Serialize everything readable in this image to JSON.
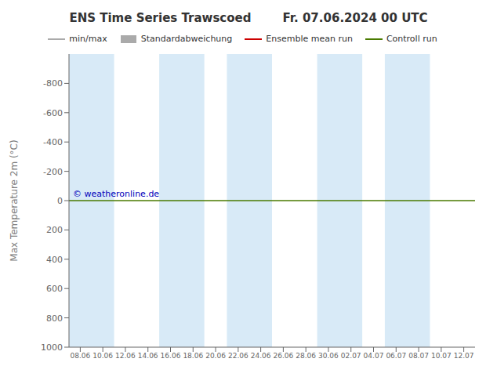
{
  "chart_data": {
    "type": "line",
    "title": "ENS Time Series Trawscoed",
    "subtitle": "Fr. 07.06.2024 00 UTC",
    "y_label": "Max Temperature 2m (°C)",
    "categories": [
      "08.06",
      "10.06",
      "12.06",
      "14.06",
      "16.06",
      "18.06",
      "20.06",
      "22.06",
      "24.06",
      "26.06",
      "28.06",
      "30.06",
      "02.07",
      "04.07",
      "06.07",
      "08.07",
      "10.07",
      "12.07"
    ],
    "ylim": [
      1000,
      -1000
    ],
    "yticks": [
      -800,
      -600,
      -400,
      -200,
      0,
      200,
      400,
      600,
      800,
      1000
    ],
    "grid": false,
    "legend": "top",
    "bands": [
      {
        "from": "08.06",
        "to": "10.06",
        "color": "#d8eaf7"
      },
      {
        "from": "16.06",
        "to": "18.06",
        "color": "#d8eaf7"
      },
      {
        "from": "22.06",
        "to": "24.06",
        "color": "#d8eaf7"
      },
      {
        "from": "30.06",
        "to": "02.07",
        "color": "#d8eaf7"
      },
      {
        "from": "06.07",
        "to": "08.07",
        "color": "#d8eaf7"
      }
    ],
    "series": [
      {
        "name": "min/max",
        "type": "line",
        "color": "#aaaaaa",
        "values": [
          null,
          null,
          null,
          null,
          null,
          null,
          null,
          null,
          null,
          null,
          null,
          null,
          null,
          null,
          null,
          null,
          null,
          null
        ]
      },
      {
        "name": "Standardabweichung",
        "type": "area",
        "color": "#aaaaaa",
        "values": [
          null,
          null,
          null,
          null,
          null,
          null,
          null,
          null,
          null,
          null,
          null,
          null,
          null,
          null,
          null,
          null,
          null,
          null
        ]
      },
      {
        "name": "Ensemble mean run",
        "type": "line",
        "color": "#cc0000",
        "values": [
          null,
          null,
          null,
          null,
          null,
          null,
          null,
          null,
          null,
          null,
          null,
          null,
          null,
          null,
          null,
          null,
          null,
          null
        ]
      },
      {
        "name": "Controll run",
        "type": "hline",
        "color": "#4a7a00",
        "y": 0
      }
    ],
    "annotations": [
      {
        "text": "© weatheronline.de",
        "color": "#0000bb",
        "y": 0
      }
    ]
  }
}
